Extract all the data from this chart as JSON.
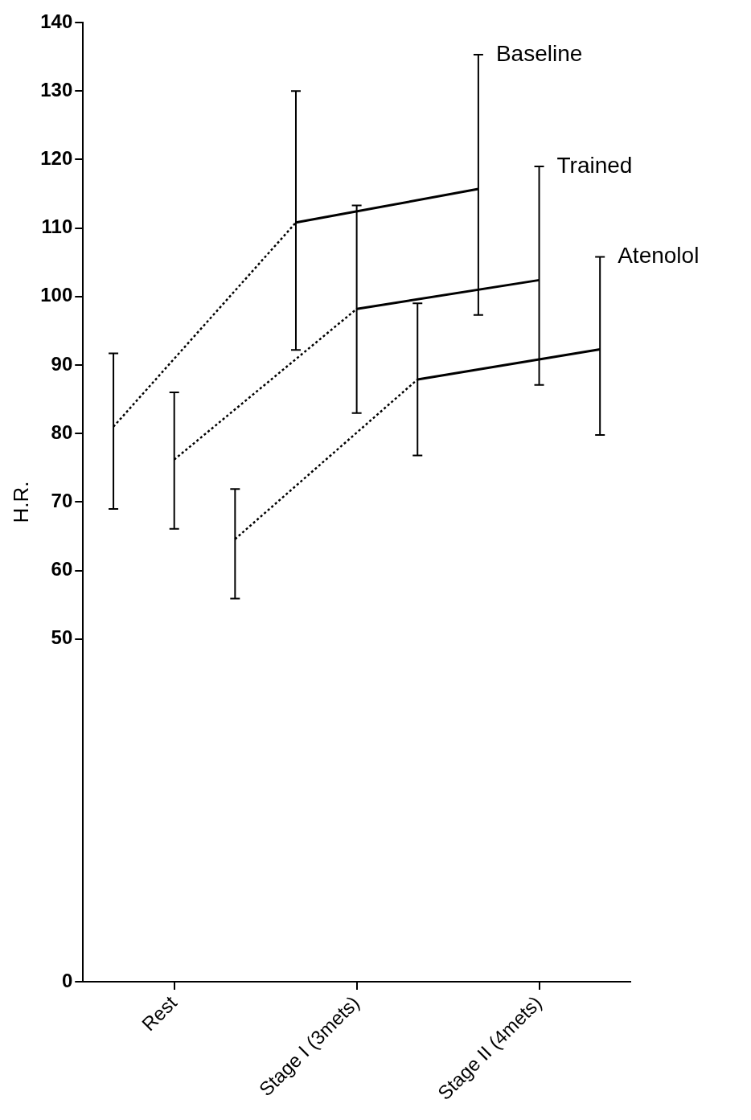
{
  "chart_data": {
    "type": "line",
    "ylabel": "H.R.",
    "categories": [
      null,
      "Rest",
      null,
      null,
      "Stage I (3mets)",
      null,
      null,
      "Stage II (4mets)",
      null
    ],
    "ylim": [
      0,
      140
    ],
    "yticks": [
      0,
      50,
      60,
      70,
      80,
      90,
      100,
      110,
      120,
      130,
      140
    ],
    "grid": false,
    "legend": "right",
    "marker": "none",
    "series": [
      {
        "color": "#000000",
        "line_style": "dotted",
        "values": [
          81,
          null,
          null,
          110.8,
          null,
          null,
          null,
          null,
          null
        ],
        "errors": [
          [
            69,
            91.7
          ],
          null,
          null,
          null,
          null,
          null,
          null,
          null,
          null
        ]
      },
      {
        "name": "Baseline",
        "color": "#000000",
        "line_style": "solid",
        "values": [
          null,
          null,
          null,
          110.8,
          null,
          null,
          115.7,
          null,
          null
        ],
        "errors": [
          null,
          null,
          null,
          [
            92.2,
            130
          ],
          null,
          null,
          [
            97.3,
            135.3
          ],
          null,
          null
        ]
      },
      {
        "color": "#000000",
        "line_style": "dotted",
        "values": [
          null,
          76.2,
          null,
          null,
          98.2,
          null,
          null,
          null,
          null
        ],
        "errors": [
          null,
          [
            66.1,
            86
          ],
          null,
          null,
          null,
          null,
          null,
          null,
          null
        ]
      },
      {
        "name": "Trained",
        "color": "#000000",
        "line_style": "solid",
        "values": [
          null,
          null,
          null,
          null,
          98.2,
          null,
          null,
          102.4,
          null
        ],
        "errors": [
          null,
          null,
          null,
          null,
          [
            83,
            113.3
          ],
          null,
          null,
          [
            87.1,
            119
          ],
          null
        ]
      },
      {
        "color": "#000000",
        "line_style": "dotted",
        "values": [
          null,
          null,
          64.6,
          null,
          null,
          87.9,
          null,
          null,
          null
        ],
        "errors": [
          null,
          null,
          [
            55.9,
            71.9
          ],
          null,
          null,
          null,
          null,
          null,
          null
        ]
      },
      {
        "name": "Atenolol",
        "color": "#000000",
        "line_style": "solid",
        "values": [
          null,
          null,
          null,
          null,
          null,
          87.9,
          null,
          null,
          92.3
        ],
        "errors": [
          null,
          null,
          null,
          null,
          null,
          [
            76.8,
            99
          ],
          null,
          null,
          [
            79.8,
            105.8
          ]
        ]
      }
    ]
  }
}
